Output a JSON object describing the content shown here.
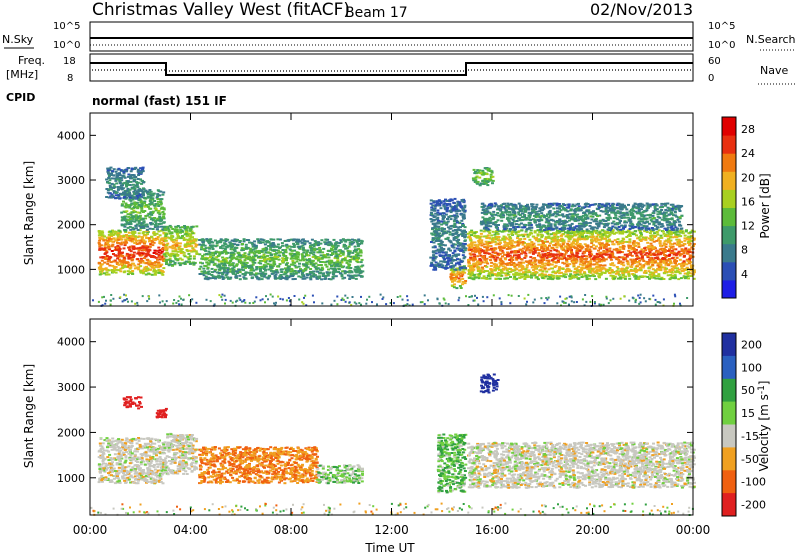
{
  "header": {
    "site": "Christmas Valley West (fitACF)",
    "beam": "Beam 17",
    "date": "02/Nov/2013"
  },
  "params": {
    "nsky_label": "N.Sky",
    "nsearch_label": "N.Search",
    "freq_label_1": "Freq.",
    "freq_label_2": "[MHz]",
    "nave_label": "Nave",
    "cpid_label": "CPID",
    "cpid_value": "normal (fast) 151 IF",
    "noise_ticks_left": [
      "10^5",
      "10^0"
    ],
    "noise_ticks_right": [
      "10^5",
      "10^0"
    ],
    "freq_ticks": [
      "18",
      "8"
    ],
    "nave_ticks": [
      "60",
      "0"
    ]
  },
  "chart_data": [
    {
      "type": "heatmap",
      "panel": "power",
      "ylabel": "Slant Range [km]",
      "yticks": [
        "1000",
        "2000",
        "3000",
        "4000"
      ],
      "ylim": [
        180,
        4500
      ],
      "xlim": [
        0,
        24
      ],
      "colorbar": {
        "label": "Power [dB]",
        "ticks": [
          "4",
          "8",
          "12",
          "16",
          "20",
          "24",
          "28"
        ],
        "range": [
          0,
          30
        ],
        "colors": [
          "#1e1ee6",
          "#2b4fb5",
          "#3a7a8c",
          "#3e9a6a",
          "#5cbb3a",
          "#a8d020",
          "#f0b020",
          "#f07a10",
          "#e83010",
          "#e00000"
        ]
      },
      "regions": [
        {
          "t0": 0.3,
          "t1": 2.9,
          "r0": 900,
          "r1": 1900,
          "level": 28
        },
        {
          "t0": 1.2,
          "t1": 2.9,
          "r0": 1900,
          "r1": 2800,
          "level": 14
        },
        {
          "t0": 0.6,
          "t1": 2.1,
          "r0": 2600,
          "r1": 3300,
          "level": 9
        },
        {
          "t0": 2.9,
          "t1": 4.2,
          "r0": 1100,
          "r1": 2000,
          "level": 20
        },
        {
          "t0": 4.3,
          "t1": 10.8,
          "r0": 800,
          "r1": 1700,
          "level": 14
        },
        {
          "t0": 14.3,
          "t1": 14.9,
          "r0": 600,
          "r1": 1100,
          "level": 24
        },
        {
          "t0": 13.5,
          "t1": 14.9,
          "r0": 1000,
          "r1": 2600,
          "level": 8
        },
        {
          "t0": 15.0,
          "t1": 24.0,
          "r0": 800,
          "r1": 1900,
          "level": 26
        },
        {
          "t0": 15.5,
          "t1": 23.5,
          "r0": 1900,
          "r1": 2500,
          "level": 10
        },
        {
          "t0": 15.2,
          "t1": 16.0,
          "r0": 2900,
          "r1": 3300,
          "level": 16
        }
      ]
    },
    {
      "type": "heatmap",
      "panel": "velocity",
      "ylabel": "Slant Range [km]",
      "yticks": [
        "1000",
        "2000",
        "3000",
        "4000"
      ],
      "ylim": [
        180,
        4500
      ],
      "xlim": [
        0,
        24
      ],
      "xticks": [
        "00:00",
        "04:00",
        "08:00",
        "12:00",
        "16:00",
        "20:00",
        "00:00"
      ],
      "xlabel": "Time UT",
      "colorbar": {
        "label": "Velocity [m s^-1]",
        "ticks": [
          "200",
          "100",
          "50",
          "15",
          "-15",
          "-50",
          "-100",
          "-200"
        ],
        "colors": [
          "#2030a0",
          "#2a60c0",
          "#30a040",
          "#70d040",
          "#c8c8c0",
          "#f0a020",
          "#f06010",
          "#e02020",
          "#f00000"
        ]
      },
      "regions": [
        {
          "t0": 0.3,
          "t1": 2.9,
          "r0": 900,
          "r1": 1900,
          "v": 0
        },
        {
          "t0": 1.3,
          "t1": 2.0,
          "r0": 2550,
          "r1": 2800,
          "v": -200
        },
        {
          "t0": 2.6,
          "t1": 3.0,
          "r0": 2350,
          "r1": 2550,
          "v": -200
        },
        {
          "t0": 2.9,
          "t1": 4.2,
          "r0": 1100,
          "r1": 2000,
          "v": 0
        },
        {
          "t0": 4.3,
          "t1": 9.0,
          "r0": 900,
          "r1": 1700,
          "v": -50
        },
        {
          "t0": 9.0,
          "t1": 10.8,
          "r0": 900,
          "r1": 1300,
          "v": 20
        },
        {
          "t0": 13.8,
          "t1": 14.9,
          "r0": 700,
          "r1": 2000,
          "v": 30
        },
        {
          "t0": 15.0,
          "t1": 24.0,
          "r0": 800,
          "r1": 1800,
          "v": 0
        },
        {
          "t0": 15.5,
          "t1": 16.2,
          "r0": 2900,
          "r1": 3300,
          "v": 150
        }
      ]
    }
  ]
}
